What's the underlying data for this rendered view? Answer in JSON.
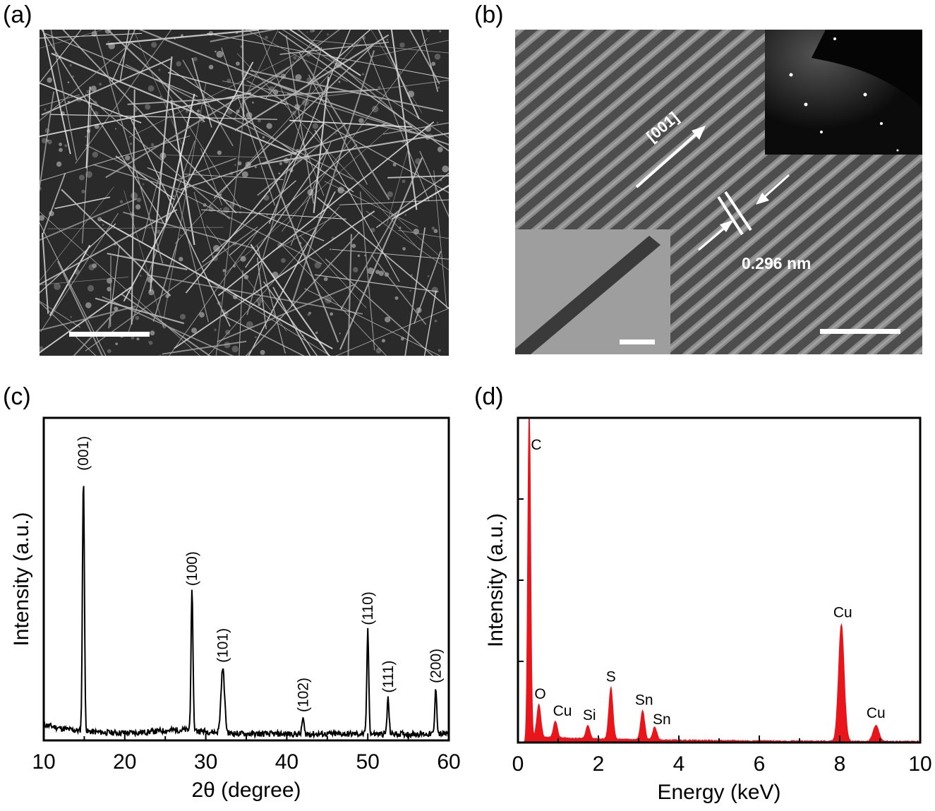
{
  "panels": {
    "a": {
      "label": "(a)"
    },
    "b": {
      "label": "(b)",
      "direction_label": "[001]",
      "spacing_label": "0.296 nm"
    },
    "c": {
      "label": "(c)"
    },
    "d": {
      "label": "(d)"
    }
  },
  "chart_data": [
    {
      "type": "line",
      "xlabel": "2θ (degree)",
      "ylabel": "Intensity (a.u.)",
      "xlim": [
        10,
        60
      ],
      "xticks": [
        10,
        20,
        30,
        40,
        50,
        60
      ],
      "ylim": [
        0,
        1.0
      ],
      "color": "#000000",
      "peaks": [
        {
          "x": 14.9,
          "height": 0.79,
          "label": "(001)"
        },
        {
          "x": 28.3,
          "height": 0.43,
          "label": "(100)"
        },
        {
          "x": 32.1,
          "height": 0.2,
          "label": "(101)"
        },
        {
          "x": 42.0,
          "height": 0.05,
          "label": "(102)"
        },
        {
          "x": 50.0,
          "height": 0.32,
          "label": "(110)"
        },
        {
          "x": 52.5,
          "height": 0.11,
          "label": "(111)"
        },
        {
          "x": 58.4,
          "height": 0.14,
          "label": "(200)"
        }
      ]
    },
    {
      "type": "area",
      "xlabel": "Energy (keV)",
      "ylabel": "Intensity (a.u.)",
      "xlim": [
        0,
        10
      ],
      "xticks": [
        0,
        2,
        4,
        6,
        8,
        10
      ],
      "ylim": [
        0,
        1.0
      ],
      "color": "#e8151b",
      "peaks": [
        {
          "x": 0.28,
          "height": 1.05,
          "label": "C"
        },
        {
          "x": 0.52,
          "height": 0.1,
          "label": "O"
        },
        {
          "x": 0.93,
          "height": 0.05,
          "label": "Cu"
        },
        {
          "x": 1.74,
          "height": 0.04,
          "label": "Si"
        },
        {
          "x": 2.31,
          "height": 0.16,
          "label": "S"
        },
        {
          "x": 3.1,
          "height": 0.09,
          "label": "Sn"
        },
        {
          "x": 3.4,
          "height": 0.04,
          "label": "Sn"
        },
        {
          "x": 8.04,
          "height": 0.36,
          "label": "Cu"
        },
        {
          "x": 8.9,
          "height": 0.05,
          "label": "Cu"
        }
      ]
    }
  ]
}
